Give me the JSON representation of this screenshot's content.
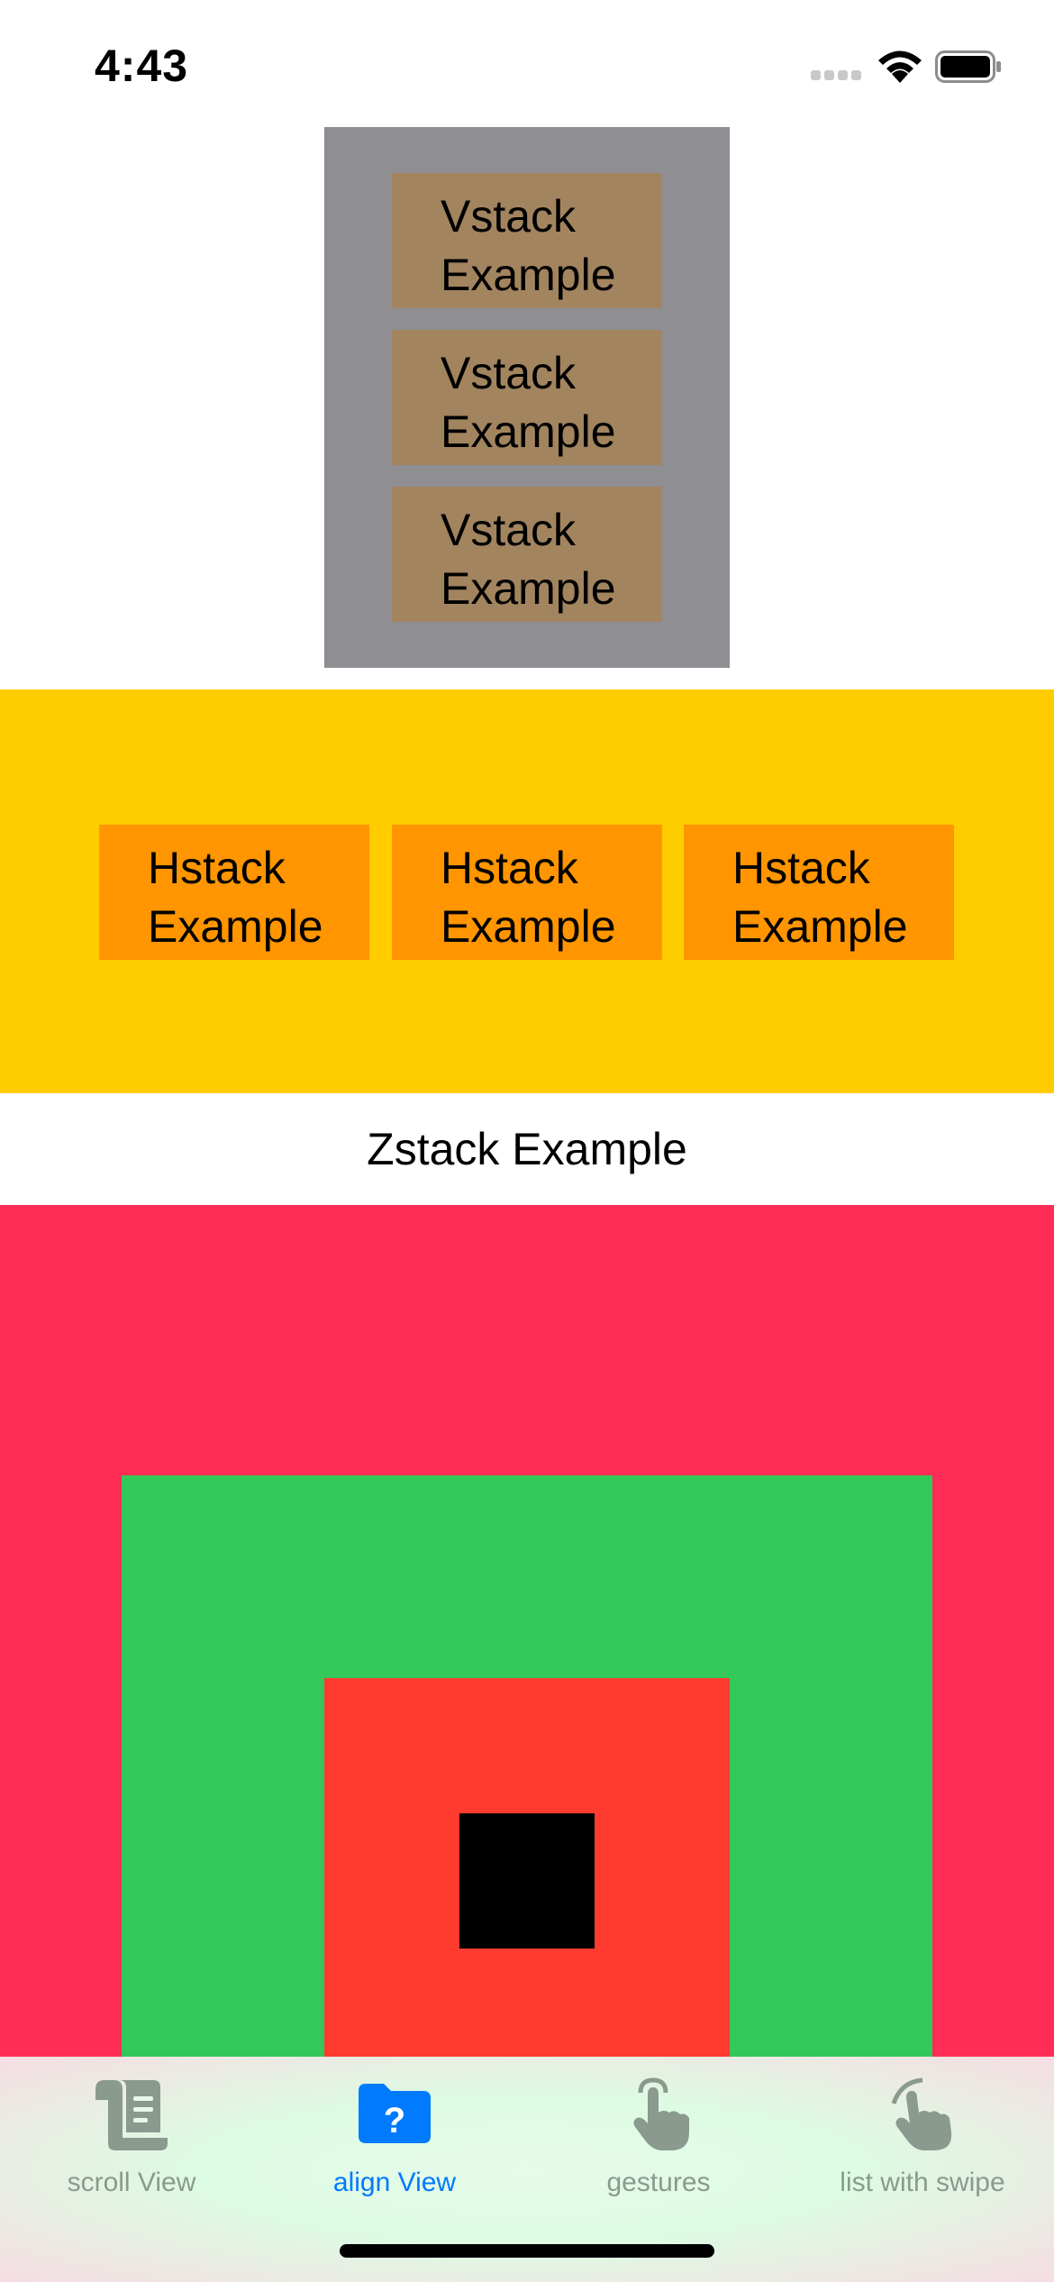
{
  "status_bar": {
    "time": "4:43",
    "icons": [
      "signal-icon",
      "wifi-icon",
      "battery-icon"
    ]
  },
  "vstack": {
    "items": [
      {
        "line1": "Vstack",
        "line2": "Example"
      },
      {
        "line1": "Vstack",
        "line2": "Example"
      },
      {
        "line1": "Vstack",
        "line2": "Example"
      }
    ],
    "colors": {
      "panel": "#8E8E93",
      "item": "#A2845E"
    }
  },
  "hstack": {
    "items": [
      {
        "line1": "Hstack",
        "line2": "Example"
      },
      {
        "line1": "Hstack",
        "line2": "Example"
      },
      {
        "line1": "Hstack",
        "line2": "Example"
      }
    ],
    "colors": {
      "panel": "#FFCC00",
      "item": "#FF9500"
    }
  },
  "zstack": {
    "label": "Zstack Example",
    "colors": {
      "outer": "#FF2D55",
      "green": "#34C759",
      "red": "#FF3B30",
      "inner": "#000000"
    }
  },
  "tab_bar": {
    "tabs": [
      {
        "label": "scroll View",
        "icon": "scroll-icon",
        "selected": false
      },
      {
        "label": "align View",
        "icon": "folder-question-icon",
        "selected": true
      },
      {
        "label": "gestures",
        "icon": "hand-tap-icon",
        "selected": false
      },
      {
        "label": "list with swipe",
        "icon": "hand-swipe-icon",
        "selected": false
      }
    ],
    "colors": {
      "active": "#007AFF",
      "inactive": "#8A9A8E"
    }
  }
}
